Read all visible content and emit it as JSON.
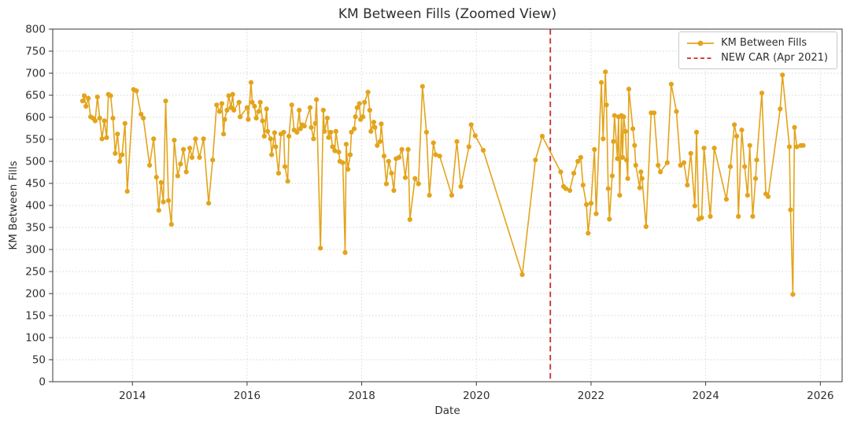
{
  "title": "KM Between Fills (Zoomed View)",
  "axes": {
    "xlabel": "Date",
    "ylabel": "KM Between Fills"
  },
  "legend": {
    "series_label": "KM Between Fills",
    "vline_label": "NEW CAR (Apr 2021)"
  },
  "chart_data": {
    "type": "line",
    "title": "KM Between Fills (Zoomed View)",
    "xlabel": "Date",
    "ylabel": "KM Between Fills",
    "xlim": [
      2012.61,
      2026.38
    ],
    "ylim": [
      0,
      800
    ],
    "xticks": [
      2014,
      2016,
      2018,
      2020,
      2022,
      2024,
      2026
    ],
    "yticks": [
      0,
      50,
      100,
      150,
      200,
      250,
      300,
      350,
      400,
      450,
      500,
      550,
      600,
      650,
      700,
      750,
      800
    ],
    "grid": true,
    "legend_position": "upper right",
    "colors": {
      "series": "#E3A41C",
      "vline": "#CD2A2A",
      "grid": "#D4D4D4",
      "spine": "#3a3a3a"
    },
    "vline": {
      "x": 2021.29,
      "label": "NEW CAR (Apr 2021)",
      "style": "dashed"
    },
    "series": [
      {
        "name": "KM Between Fills",
        "marker": "circle",
        "points": [
          [
            2013.13,
            637
          ],
          [
            2013.16,
            649
          ],
          [
            2013.19,
            625
          ],
          [
            2013.23,
            643
          ],
          [
            2013.27,
            601
          ],
          [
            2013.31,
            598
          ],
          [
            2013.35,
            592
          ],
          [
            2013.39,
            646
          ],
          [
            2013.43,
            598
          ],
          [
            2013.47,
            551
          ],
          [
            2013.51,
            592
          ],
          [
            2013.55,
            554
          ],
          [
            2013.58,
            652
          ],
          [
            2013.62,
            649
          ],
          [
            2013.66,
            598
          ],
          [
            2013.7,
            518
          ],
          [
            2013.74,
            562
          ],
          [
            2013.78,
            500
          ],
          [
            2013.82,
            515
          ],
          [
            2013.87,
            586
          ],
          [
            2013.91,
            432
          ],
          [
            2014.02,
            663
          ],
          [
            2014.07,
            660
          ],
          [
            2014.15,
            607
          ],
          [
            2014.19,
            598
          ],
          [
            2014.3,
            491
          ],
          [
            2014.37,
            551
          ],
          [
            2014.42,
            464
          ],
          [
            2014.46,
            389
          ],
          [
            2014.5,
            452
          ],
          [
            2014.54,
            408
          ],
          [
            2014.58,
            637
          ],
          [
            2014.63,
            411
          ],
          [
            2014.68,
            357
          ],
          [
            2014.73,
            548
          ],
          [
            2014.79,
            467
          ],
          [
            2014.84,
            494
          ],
          [
            2014.89,
            527
          ],
          [
            2014.94,
            476
          ],
          [
            2015.0,
            530
          ],
          [
            2015.04,
            509
          ],
          [
            2015.1,
            551
          ],
          [
            2015.17,
            509
          ],
          [
            2015.24,
            551
          ],
          [
            2015.33,
            405
          ],
          [
            2015.4,
            503
          ],
          [
            2015.47,
            628
          ],
          [
            2015.52,
            613
          ],
          [
            2015.56,
            631
          ],
          [
            2015.59,
            562
          ],
          [
            2015.61,
            595
          ],
          [
            2015.65,
            616
          ],
          [
            2015.68,
            649
          ],
          [
            2015.72,
            622
          ],
          [
            2015.75,
            652
          ],
          [
            2015.77,
            616
          ],
          [
            2015.86,
            634
          ],
          [
            2015.88,
            601
          ],
          [
            2016.0,
            622
          ],
          [
            2016.02,
            595
          ],
          [
            2016.07,
            679
          ],
          [
            2016.09,
            634
          ],
          [
            2016.13,
            625
          ],
          [
            2016.16,
            598
          ],
          [
            2016.2,
            613
          ],
          [
            2016.23,
            634
          ],
          [
            2016.27,
            592
          ],
          [
            2016.3,
            557
          ],
          [
            2016.34,
            619
          ],
          [
            2016.36,
            568
          ],
          [
            2016.41,
            551
          ],
          [
            2016.43,
            515
          ],
          [
            2016.48,
            565
          ],
          [
            2016.5,
            533
          ],
          [
            2016.55,
            473
          ],
          [
            2016.59,
            562
          ],
          [
            2016.64,
            566
          ],
          [
            2016.66,
            488
          ],
          [
            2016.71,
            455
          ],
          [
            2016.73,
            557
          ],
          [
            2016.78,
            628
          ],
          [
            2016.82,
            571
          ],
          [
            2016.87,
            566
          ],
          [
            2016.91,
            616
          ],
          [
            2016.93,
            574
          ],
          [
            2016.96,
            583
          ],
          [
            2017.0,
            580
          ],
          [
            2017.1,
            622
          ],
          [
            2017.12,
            577
          ],
          [
            2017.16,
            551
          ],
          [
            2017.19,
            586
          ],
          [
            2017.21,
            640
          ],
          [
            2017.28,
            303
          ],
          [
            2017.33,
            616
          ],
          [
            2017.35,
            568
          ],
          [
            2017.4,
            598
          ],
          [
            2017.42,
            554
          ],
          [
            2017.46,
            566
          ],
          [
            2017.49,
            533
          ],
          [
            2017.53,
            524
          ],
          [
            2017.55,
            568
          ],
          [
            2017.6,
            521
          ],
          [
            2017.62,
            500
          ],
          [
            2017.67,
            497
          ],
          [
            2017.71,
            293
          ],
          [
            2017.73,
            539
          ],
          [
            2017.76,
            482
          ],
          [
            2017.8,
            515
          ],
          [
            2017.82,
            566
          ],
          [
            2017.87,
            574
          ],
          [
            2017.89,
            601
          ],
          [
            2017.92,
            622
          ],
          [
            2017.96,
            631
          ],
          [
            2017.98,
            595
          ],
          [
            2018.02,
            601
          ],
          [
            2018.05,
            634
          ],
          [
            2018.11,
            657
          ],
          [
            2018.14,
            616
          ],
          [
            2018.16,
            568
          ],
          [
            2018.21,
            589
          ],
          [
            2018.23,
            577
          ],
          [
            2018.27,
            536
          ],
          [
            2018.32,
            545
          ],
          [
            2018.34,
            585
          ],
          [
            2018.39,
            512
          ],
          [
            2018.43,
            449
          ],
          [
            2018.47,
            500
          ],
          [
            2018.52,
            473
          ],
          [
            2018.56,
            434
          ],
          [
            2018.6,
            506
          ],
          [
            2018.65,
            509
          ],
          [
            2018.7,
            527
          ],
          [
            2018.76,
            463
          ],
          [
            2018.81,
            527
          ],
          [
            2018.84,
            368
          ],
          [
            2018.93,
            461
          ],
          [
            2018.99,
            449
          ],
          [
            2019.06,
            670
          ],
          [
            2019.13,
            566
          ],
          [
            2019.18,
            423
          ],
          [
            2019.25,
            542
          ],
          [
            2019.29,
            515
          ],
          [
            2019.36,
            512
          ],
          [
            2019.57,
            423
          ],
          [
            2019.66,
            545
          ],
          [
            2019.73,
            443
          ],
          [
            2019.87,
            533
          ],
          [
            2019.91,
            583
          ],
          [
            2019.98,
            558
          ],
          [
            2020.12,
            525
          ],
          [
            2020.8,
            243
          ],
          [
            2021.03,
            503
          ],
          [
            2021.15,
            557
          ],
          [
            2021.47,
            476
          ],
          [
            2021.52,
            443
          ],
          [
            2021.56,
            438
          ],
          [
            2021.63,
            434
          ],
          [
            2021.7,
            473
          ],
          [
            2021.77,
            500
          ],
          [
            2021.82,
            509
          ],
          [
            2021.86,
            446
          ],
          [
            2021.92,
            402
          ],
          [
            2021.95,
            337
          ],
          [
            2022.0,
            405
          ],
          [
            2022.06,
            527
          ],
          [
            2022.09,
            381
          ],
          [
            2022.18,
            679
          ],
          [
            2022.21,
            551
          ],
          [
            2022.25,
            703
          ],
          [
            2022.27,
            628
          ],
          [
            2022.3,
            438
          ],
          [
            2022.32,
            369
          ],
          [
            2022.37,
            467
          ],
          [
            2022.39,
            545
          ],
          [
            2022.41,
            604
          ],
          [
            2022.46,
            506
          ],
          [
            2022.48,
            601
          ],
          [
            2022.5,
            423
          ],
          [
            2022.53,
            604
          ],
          [
            2022.55,
            509
          ],
          [
            2022.57,
            601
          ],
          [
            2022.6,
            568
          ],
          [
            2022.62,
            503
          ],
          [
            2022.64,
            461
          ],
          [
            2022.66,
            664
          ],
          [
            2022.73,
            574
          ],
          [
            2022.76,
            536
          ],
          [
            2022.78,
            491
          ],
          [
            2022.85,
            440
          ],
          [
            2022.87,
            476
          ],
          [
            2022.89,
            461
          ],
          [
            2022.96,
            352
          ],
          [
            2023.05,
            610
          ],
          [
            2023.1,
            610
          ],
          [
            2023.17,
            491
          ],
          [
            2023.21,
            476
          ],
          [
            2023.33,
            497
          ],
          [
            2023.4,
            675
          ],
          [
            2023.49,
            613
          ],
          [
            2023.56,
            491
          ],
          [
            2023.62,
            497
          ],
          [
            2023.68,
            446
          ],
          [
            2023.74,
            518
          ],
          [
            2023.81,
            399
          ],
          [
            2023.84,
            566
          ],
          [
            2023.88,
            369
          ],
          [
            2023.93,
            372
          ],
          [
            2023.97,
            530
          ],
          [
            2024.08,
            375
          ],
          [
            2024.15,
            530
          ],
          [
            2024.36,
            414
          ],
          [
            2024.43,
            488
          ],
          [
            2024.5,
            583
          ],
          [
            2024.54,
            557
          ],
          [
            2024.57,
            375
          ],
          [
            2024.63,
            571
          ],
          [
            2024.68,
            488
          ],
          [
            2024.73,
            423
          ],
          [
            2024.77,
            536
          ],
          [
            2024.82,
            375
          ],
          [
            2024.87,
            461
          ],
          [
            2024.89,
            503
          ],
          [
            2024.98,
            655
          ],
          [
            2025.05,
            426
          ],
          [
            2025.09,
            420
          ],
          [
            2025.3,
            619
          ],
          [
            2025.34,
            696
          ],
          [
            2025.46,
            533
          ],
          [
            2025.48,
            390
          ],
          [
            2025.52,
            198
          ],
          [
            2025.55,
            577
          ],
          [
            2025.59,
            533
          ],
          [
            2025.66,
            536
          ],
          [
            2025.7,
            536
          ]
        ]
      }
    ]
  }
}
